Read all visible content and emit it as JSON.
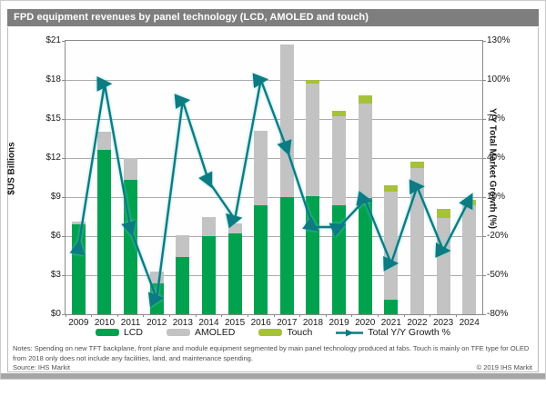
{
  "chart_data": {
    "type": "bar",
    "title": "FPD equipment revenues by panel technology (LCD, AMOLED and touch)",
    "categories": [
      "2009",
      "2010",
      "2011",
      "2012",
      "2013",
      "2014",
      "2015",
      "2016",
      "2017",
      "2018",
      "2019",
      "2020",
      "2021",
      "2022",
      "2023",
      "2024"
    ],
    "series": [
      {
        "name": "LCD",
        "color": "#00a24f",
        "values": [
          6.9,
          12.6,
          10.3,
          2.4,
          4.4,
          6.0,
          6.2,
          8.4,
          9.0,
          9.1,
          8.4,
          8.9,
          1.1,
          0,
          0,
          0
        ]
      },
      {
        "name": "AMOLED",
        "color": "#c3c3c3",
        "values": [
          0.2,
          1.4,
          1.7,
          0.9,
          1.7,
          1.5,
          0.8,
          5.7,
          11.7,
          8.6,
          6.8,
          7.3,
          8.3,
          11.2,
          7.4,
          8.4
        ]
      },
      {
        "name": "Touch",
        "color": "#a6c239",
        "values": [
          0,
          0,
          0,
          0,
          0,
          0,
          0,
          0,
          0,
          0.3,
          0.4,
          0.6,
          0.5,
          0.5,
          0.7,
          0.4
        ]
      }
    ],
    "line_series": {
      "name": "Total Y/Y Growth %",
      "color": "#0c7b82",
      "axis": "right",
      "values": [
        -28,
        97,
        -15,
        -68,
        84,
        22,
        -7,
        100,
        47,
        -13,
        -13,
        8,
        -41,
        18,
        -31,
        8
      ]
    },
    "left_axis": {
      "label": "$US Billions",
      "min": 0,
      "max": 21,
      "ticks": [
        "$21",
        "$18",
        "$15",
        "$12",
        "$9",
        "$6",
        "$3",
        "$0"
      ]
    },
    "right_axis": {
      "label": "Y/Y Total Market Growth (%)",
      "min": -80,
      "max": 130,
      "ticks": [
        "130%",
        "100%",
        "70%",
        "40%",
        "10%",
        "-20%",
        "-50%",
        "-80%"
      ]
    },
    "grid": true,
    "legend_position": "bottom"
  },
  "footer": {
    "notes": "Notes: Spending on new TFT backplane, front plane and module equipment segmented by main panel technology produced at fabs. Touch is mainly on TFE type for OLED from 2018 only does not include any facilities, land, and maintenance spending.",
    "source": "Source: IHS Markit",
    "copyright": "© 2019 IHS Markit"
  }
}
